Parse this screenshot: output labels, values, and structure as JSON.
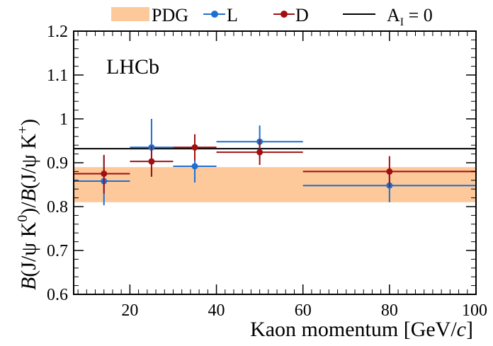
{
  "chart_data": {
    "type": "scatter",
    "xlabel": "Kaon momentum [GeV/",
    "xlabel_italic": "c",
    "xlabel_end": "]",
    "ylabel": {
      "B1": "B",
      "part1": "(J/ψ K",
      "sup1": "0",
      "part2": ")/",
      "B2": "B",
      "part3": "(J/ψ K",
      "sup2": "+",
      "part4": ")"
    },
    "xlim": [
      7,
      100
    ],
    "ylim": [
      0.6,
      1.2
    ],
    "x_ticks": [
      20,
      40,
      60,
      80,
      100
    ],
    "y_ticks": [
      0.6,
      0.7,
      0.8,
      0.9,
      1.0,
      1.1,
      1.2
    ],
    "y_tick_labels": [
      "0.6",
      "0.7",
      "0.8",
      "0.9",
      "1",
      "1.1",
      "1.2"
    ],
    "annotation": "LHCb",
    "pdg_band": {
      "label": "PDG",
      "low": 0.81,
      "high": 0.89,
      "color": "#fdc99a"
    },
    "reference_line": {
      "label": "A",
      "label_sub": "I",
      "label_rest": " = 0",
      "y": 0.932,
      "color": "#000000"
    },
    "series": [
      {
        "name": "L",
        "color": "#1f6fd1",
        "points": [
          {
            "x": 14,
            "xlo": 7,
            "xhi": 20,
            "y": 0.858,
            "ylo": 0.803,
            "yhi": 0.916
          },
          {
            "x": 25,
            "xlo": 20,
            "xhi": 30,
            "y": 0.935,
            "ylo": 0.87,
            "yhi": 1.0
          },
          {
            "x": 35,
            "xlo": 30,
            "xhi": 40,
            "y": 0.892,
            "ylo": 0.855,
            "yhi": 0.93
          },
          {
            "x": 50,
            "xlo": 40,
            "xhi": 60,
            "y": 0.948,
            "ylo": 0.91,
            "yhi": 0.985
          },
          {
            "x": 80,
            "xlo": 60,
            "xhi": 100,
            "y": 0.848,
            "ylo": 0.81,
            "yhi": 0.885
          }
        ]
      },
      {
        "name": "D",
        "color": "#a01010",
        "points": [
          {
            "x": 14,
            "xlo": 7,
            "xhi": 20,
            "y": 0.875,
            "ylo": 0.83,
            "yhi": 0.918
          },
          {
            "x": 25,
            "xlo": 20,
            "xhi": 30,
            "y": 0.903,
            "ylo": 0.868,
            "yhi": 0.938
          },
          {
            "x": 35,
            "xlo": 30,
            "xhi": 40,
            "y": 0.935,
            "ylo": 0.905,
            "yhi": 0.965
          },
          {
            "x": 50,
            "xlo": 40,
            "xhi": 60,
            "y": 0.924,
            "ylo": 0.895,
            "yhi": 0.953
          },
          {
            "x": 80,
            "xlo": 60,
            "xhi": 100,
            "y": 0.88,
            "ylo": 0.845,
            "yhi": 0.915
          }
        ]
      }
    ]
  }
}
